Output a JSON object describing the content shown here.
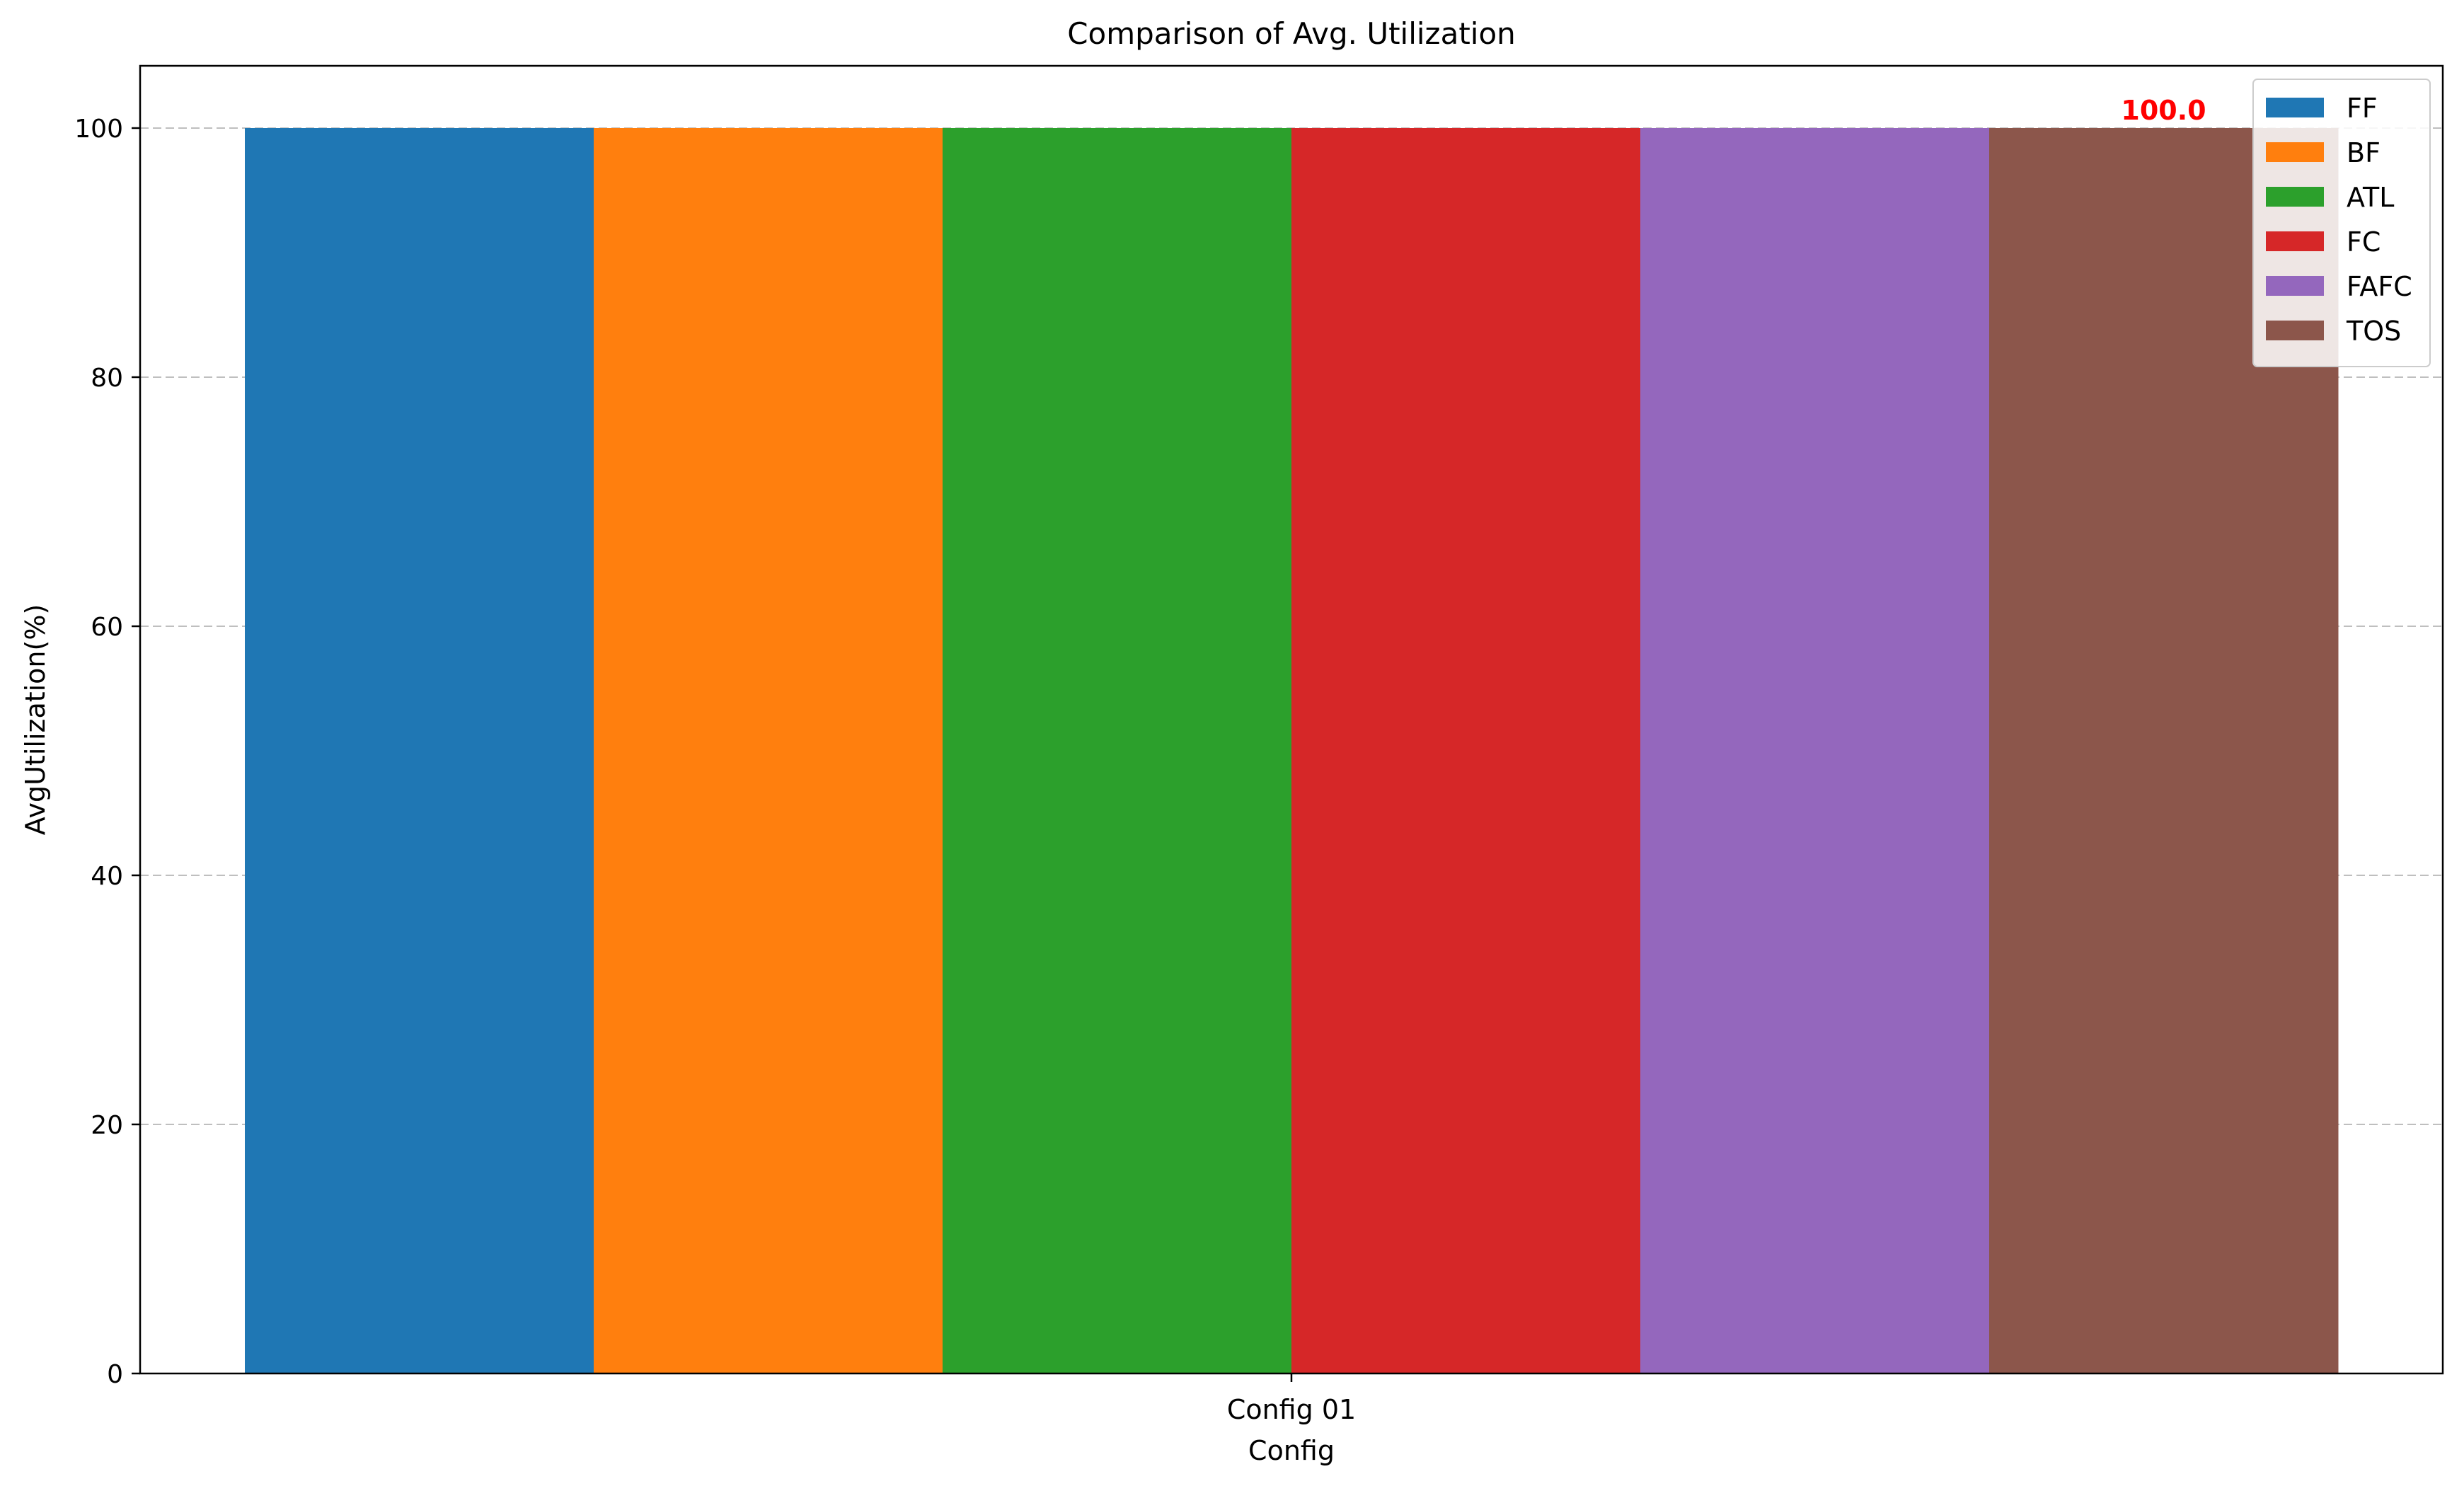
{
  "chart_data": {
    "type": "bar",
    "title": "Comparison of Avg. Utilization",
    "xlabel": "Config",
    "ylabel": "AvgUtilization(%)",
    "categories": [
      "Config 01"
    ],
    "series": [
      {
        "name": "FF",
        "values": [
          100.0
        ],
        "color": "#1f77b4"
      },
      {
        "name": "BF",
        "values": [
          100.0
        ],
        "color": "#ff7f0e"
      },
      {
        "name": "ATL",
        "values": [
          100.0
        ],
        "color": "#2ca02c"
      },
      {
        "name": "FC",
        "values": [
          100.0
        ],
        "color": "#d62728"
      },
      {
        "name": "FAFC",
        "values": [
          100.0
        ],
        "color": "#9467bd"
      },
      {
        "name": "TOS",
        "values": [
          100.0
        ],
        "color": "#8c564b"
      }
    ],
    "ylim": [
      0,
      105
    ],
    "yticks": [
      0,
      20,
      40,
      60,
      80,
      100
    ],
    "grid": "y, dashed",
    "legend": "top-right",
    "annotations": [
      {
        "text": "100.0",
        "series": "TOS",
        "color": "#ff0000"
      }
    ]
  }
}
